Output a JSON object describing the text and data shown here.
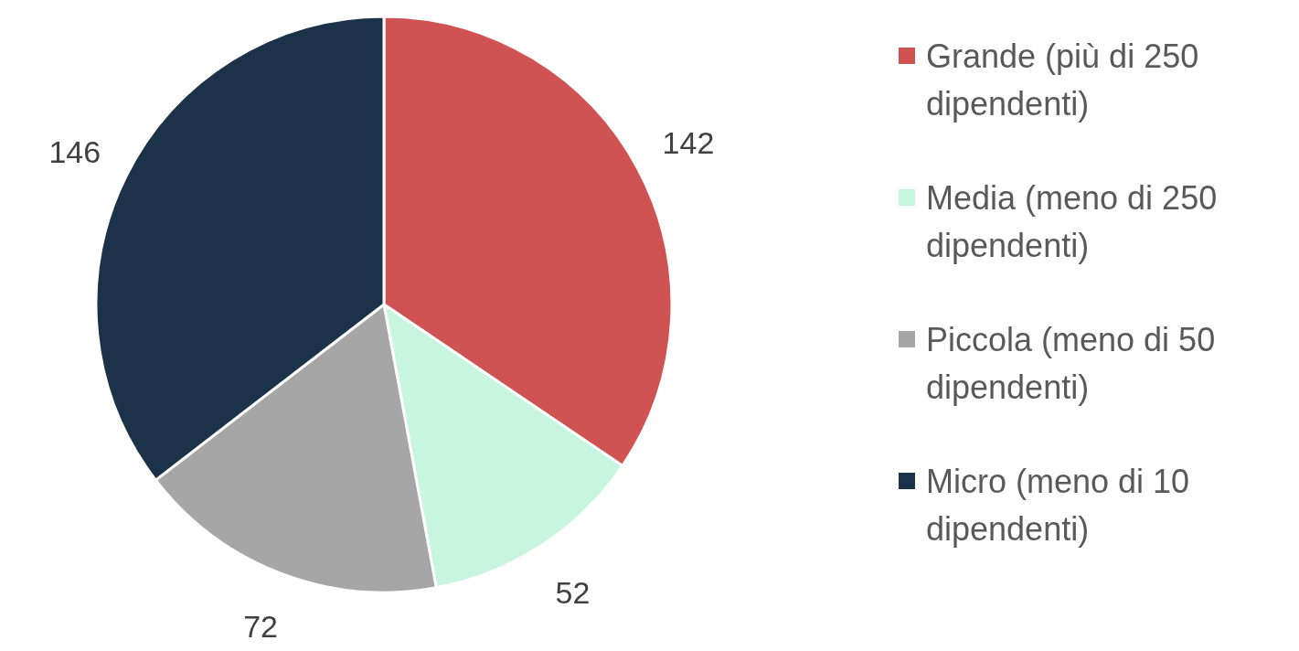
{
  "chart_data": {
    "type": "pie",
    "categories": [
      "Grande (più di 250 dipendenti)",
      "Media (meno di 250 dipendenti)",
      "Piccola (meno di 50 dipendenti)",
      "Micro (meno di 10 dipendenti)"
    ],
    "values": [
      142,
      52,
      72,
      146
    ],
    "colors": [
      "#d05353",
      "#c8f5e0",
      "#a6a6a6",
      "#1b3249"
    ],
    "data_labels": true,
    "legend": "right"
  }
}
